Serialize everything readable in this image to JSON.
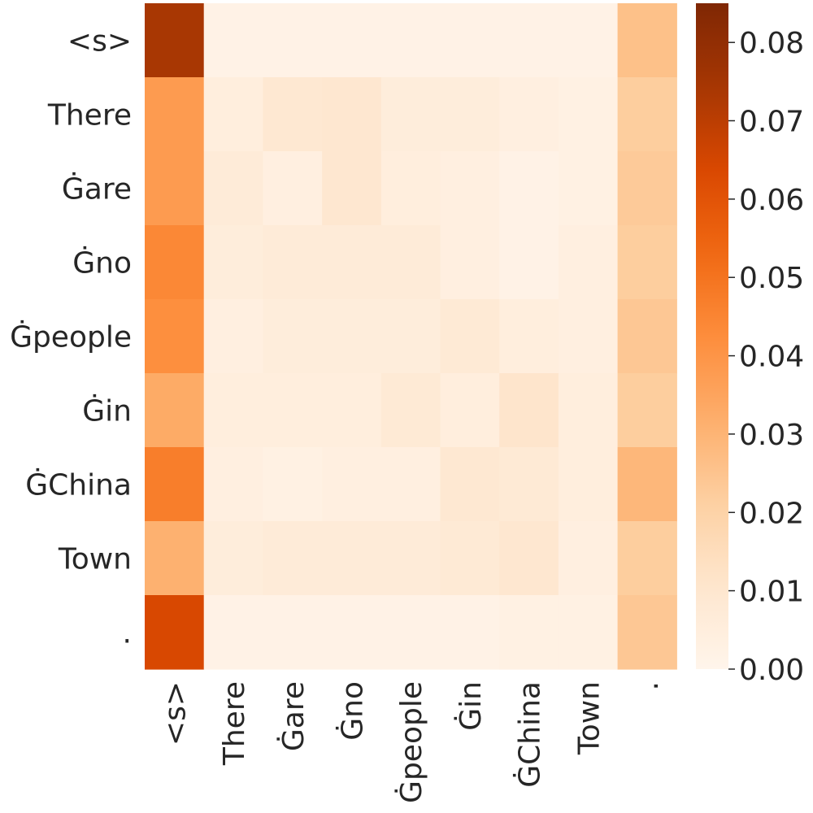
{
  "chart_data": {
    "type": "heatmap",
    "title": "",
    "xlabel": "",
    "ylabel": "",
    "x_labels": [
      "<s>",
      "There",
      "Ġare",
      "Ġno",
      "Ġpeople",
      "Ġin",
      "ĠChina",
      "Town",
      "."
    ],
    "y_labels": [
      "<s>",
      "There",
      "Ġare",
      "Ġno",
      "Ġpeople",
      "Ġin",
      "ĠChina",
      "Town",
      "."
    ],
    "values": [
      [
        0.074,
        0.002,
        0.002,
        0.002,
        0.002,
        0.002,
        0.002,
        0.002,
        0.026
      ],
      [
        0.038,
        0.005,
        0.009,
        0.01,
        0.006,
        0.006,
        0.004,
        0.003,
        0.022
      ],
      [
        0.038,
        0.007,
        0.004,
        0.01,
        0.005,
        0.004,
        0.002,
        0.003,
        0.023
      ],
      [
        0.044,
        0.006,
        0.007,
        0.007,
        0.007,
        0.004,
        0.002,
        0.004,
        0.022
      ],
      [
        0.042,
        0.004,
        0.006,
        0.006,
        0.006,
        0.008,
        0.005,
        0.004,
        0.024
      ],
      [
        0.033,
        0.005,
        0.005,
        0.005,
        0.008,
        0.005,
        0.011,
        0.005,
        0.022
      ],
      [
        0.047,
        0.004,
        0.003,
        0.004,
        0.004,
        0.009,
        0.008,
        0.005,
        0.029
      ],
      [
        0.031,
        0.006,
        0.007,
        0.007,
        0.007,
        0.008,
        0.01,
        0.004,
        0.022
      ],
      [
        0.064,
        0.002,
        0.002,
        0.002,
        0.002,
        0.002,
        0.003,
        0.003,
        0.024
      ]
    ],
    "colorbar": {
      "min": 0.0,
      "max": 0.085,
      "ticks": [
        "0.00",
        "0.01",
        "0.02",
        "0.03",
        "0.04",
        "0.05",
        "0.06",
        "0.07",
        "0.08"
      ]
    },
    "colormap": "Oranges",
    "grid": false,
    "legend": "colorbar right"
  }
}
